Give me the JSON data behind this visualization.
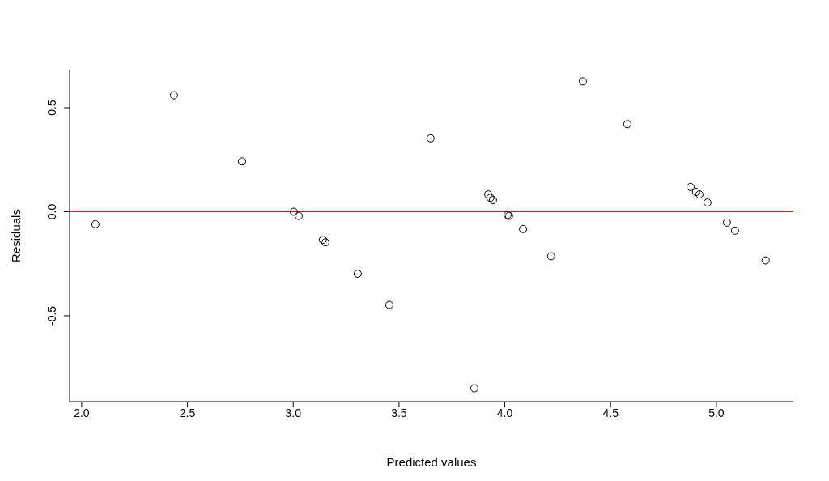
{
  "chart_data": {
    "type": "scatter",
    "xlabel": "Predicted values",
    "ylabel": "Residuals",
    "x": [
      2.065,
      2.436,
      2.758,
      3.003,
      3.026,
      3.14,
      3.152,
      3.305,
      3.454,
      3.649,
      3.856,
      3.921,
      3.932,
      3.944,
      4.013,
      4.02,
      4.086,
      4.219,
      4.369,
      4.579,
      4.878,
      4.904,
      4.92,
      4.958,
      5.05,
      5.088,
      5.233
    ],
    "series": [
      {
        "color": "#000000",
        "values": [
          -0.06,
          0.56,
          0.242,
          0.0,
          -0.02,
          -0.135,
          -0.147,
          -0.298,
          -0.448,
          0.353,
          -0.849,
          0.083,
          0.067,
          0.056,
          -0.016,
          -0.02,
          -0.083,
          -0.214,
          0.627,
          0.421,
          0.119,
          0.095,
          0.083,
          0.044,
          -0.052,
          -0.091,
          -0.234
        ]
      }
    ],
    "xlim": [
      1.943,
      5.364
    ],
    "ylim": [
      -0.913,
      0.683
    ],
    "xticks": [
      {
        "value": 2,
        "label": "2.0"
      },
      {
        "value": 2.5,
        "label": "2.5"
      },
      {
        "value": 3,
        "label": "3.0"
      },
      {
        "value": 3.5,
        "label": "3.5"
      },
      {
        "value": 4,
        "label": "4.0"
      },
      {
        "value": 4.5,
        "label": "4.5"
      },
      {
        "value": 5,
        "label": "5.0"
      }
    ],
    "yticks": [
      {
        "value": -0.5,
        "label": "-0.5"
      },
      {
        "value": 0,
        "label": "0.0"
      },
      {
        "value": 0.5,
        "label": "0.5"
      }
    ],
    "ref_lines": [
      {
        "axis": "y",
        "value": 0,
        "color": "#ff0000"
      }
    ],
    "marker": "circle",
    "grid": false,
    "legend": false
  }
}
